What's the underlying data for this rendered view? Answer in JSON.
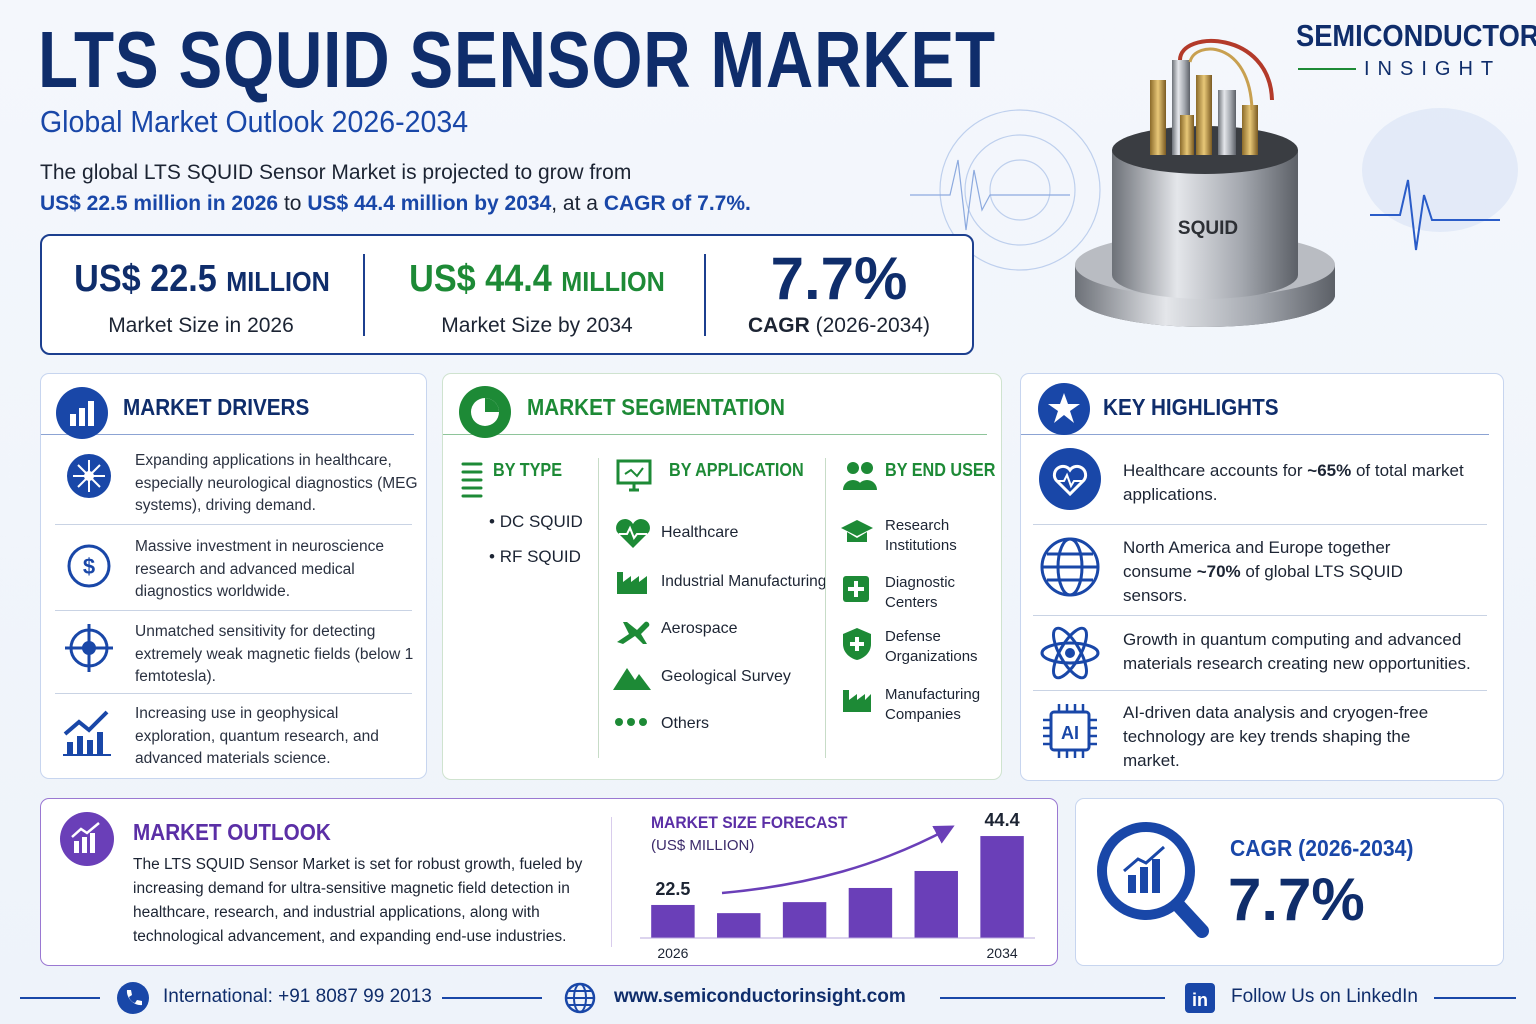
{
  "header": {
    "title": "LTS SQUID SENSOR MARKET",
    "subtitle": "Global Market Outlook 2026-2034",
    "intro": [
      "The global LTS SQUID Sensor Market is projected to grow from",
      "US$ 22.5 million in 2026",
      "to",
      "US$ 44.4 million by 2034",
      ", at a",
      "CAGR of 7.7%."
    ]
  },
  "logo": {
    "name": "SEMICONDUCTOR",
    "tagline": "INSIGHT"
  },
  "image_label": "SQUID",
  "stats": [
    {
      "value": "US$ 22.5",
      "unit": "MILLION",
      "label": "Market Size in 2026"
    },
    {
      "value": "US$ 44.4",
      "unit": "MILLION",
      "label": "Market Size by 2034"
    },
    {
      "value": "7.7%",
      "label_bold": "CAGR",
      "label": "(2026-2034)"
    }
  ],
  "drivers": {
    "title": "MARKET DRIVERS",
    "items": [
      "Expanding applications in healthcare, especially neurological diagnostics (MEG systems), driving demand.",
      "Massive investment in neuroscience research and advanced medical diagnostics worldwide.",
      "Unmatched sensitivity for detecting extremely weak magnetic fields (below 1 femtotesla).",
      "Increasing use in geophysical exploration, quantum research, and advanced materials science."
    ]
  },
  "segmentation": {
    "title": "MARKET SEGMENTATION",
    "columns": [
      {
        "title": "BY TYPE",
        "items": [
          "DC SQUID",
          "RF SQUID"
        ]
      },
      {
        "title": "BY APPLICATION",
        "items": [
          "Healthcare",
          "Industrial Manufacturing",
          "Aerospace",
          "Geological Survey",
          "Others"
        ]
      },
      {
        "title": "BY END USER",
        "items": [
          "Research Institutions",
          "Diagnostic Centers",
          "Defense Organizations",
          "Manufacturing Companies"
        ]
      }
    ]
  },
  "highlights": {
    "title": "KEY HIGHLIGHTS",
    "items": [
      [
        "Healthcare accounts for",
        "~65%",
        "of total market applications."
      ],
      [
        "North America and Europe together consume",
        "~70%",
        "of global LTS SQUID sensors."
      ],
      [
        "Growth in quantum computing and advanced materials research creating new opportunities."
      ],
      [
        "AI-driven data analysis and cryogen-free technology are key trends shaping the market."
      ]
    ]
  },
  "outlook": {
    "title": "MARKET OUTLOOK",
    "text": "The LTS SQUID Sensor Market is set for robust growth, fueled by increasing demand for ultra-sensitive magnetic field detection in healthcare, research, and industrial applications, along with technological advancement, and expanding end-use industries."
  },
  "chart_data": {
    "type": "bar",
    "title": "MARKET SIZE FORECAST",
    "subtitle": "(US$ MILLION)",
    "categories": [
      "2026",
      null,
      null,
      null,
      null,
      "2034"
    ],
    "values": [
      22.5,
      19.9,
      23.4,
      27.9,
      33.3,
      44.4
    ],
    "color": "#6a3fb8",
    "ylim": [
      12,
      49.5
    ]
  },
  "cagr": {
    "title": "CAGR (2026-2034)",
    "value": "7.7%"
  },
  "footer": {
    "phone": "International: +91 8087 99 2013",
    "website": "www.semiconductorinsight.com",
    "social": "Follow Us on LinkedIn"
  }
}
